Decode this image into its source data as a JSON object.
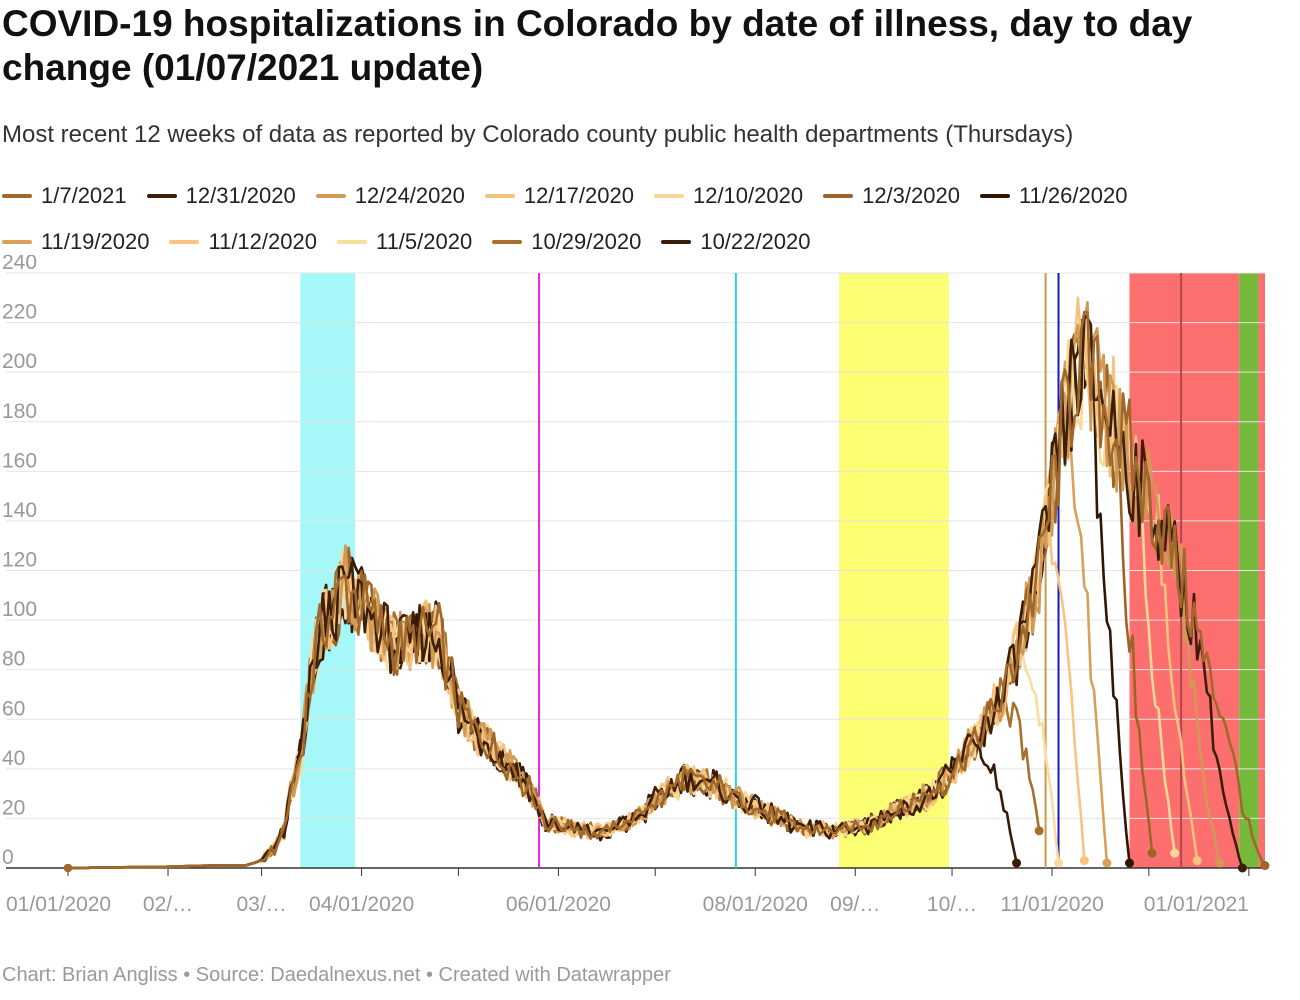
{
  "title": "COVID-19 hospitalizations in Colorado by date of illness, day to day change (01/07/2021 update)",
  "subtitle": "Most recent 12 weeks of data as reported by Colorado county public health departments (Thursdays)",
  "footer": {
    "author": "Chart: Brian Angliss",
    "source": "Source: Daedalnexus.net",
    "tool": "Created with Datawrapper",
    "separator": "•"
  },
  "chart_data": {
    "type": "line",
    "title": "COVID-19 hospitalizations in Colorado by date of illness, day to day change (01/07/2021 update)",
    "xlabel": "",
    "ylabel": "",
    "x_range": [
      "2020-01-01",
      "2021-01-06"
    ],
    "ylim": [
      0,
      240
    ],
    "grid": true,
    "legend_position": "top",
    "y_ticks": [
      "0",
      "20",
      "40",
      "60",
      "80",
      "100",
      "120",
      "140",
      "160",
      "180",
      "200",
      "220",
      "240"
    ],
    "x_ticks": [
      {
        "date": "2020-01-01",
        "label": "01/01/2020"
      },
      {
        "date": "2020-02-01",
        "label": "02/…"
      },
      {
        "date": "2020-03-01",
        "label": "03/…"
      },
      {
        "date": "2020-04-01",
        "label": "04/01/2020"
      },
      {
        "date": "2020-05-01",
        "label": ""
      },
      {
        "date": "2020-06-01",
        "label": "06/01/2020"
      },
      {
        "date": "2020-07-01",
        "label": ""
      },
      {
        "date": "2020-08-01",
        "label": "08/01/2020"
      },
      {
        "date": "2020-09-01",
        "label": "09/…"
      },
      {
        "date": "2020-10-01",
        "label": "10/…"
      },
      {
        "date": "2020-11-01",
        "label": "11/01/2020"
      },
      {
        "date": "2020-12-01",
        "label": ""
      },
      {
        "date": "2021-01-01",
        "label": "01/01/2021"
      }
    ],
    "annotations": {
      "bands": [
        {
          "start": "2020-03-13",
          "end": "2020-03-30",
          "color": "#a6f7f7"
        },
        {
          "start": "2020-08-27",
          "end": "2020-09-30",
          "color": "#fbfd72"
        },
        {
          "start": "2020-11-25",
          "end": "2020-12-29",
          "color": "#fd6f6f"
        },
        {
          "start": "2020-12-29",
          "end": "2021-01-04",
          "color": "#76b83a"
        },
        {
          "start": "2021-01-04",
          "end": "2021-01-06",
          "color": "#fd6f6f"
        }
      ],
      "lines": [
        {
          "date": "2020-05-26",
          "color": "#e325e3"
        },
        {
          "date": "2020-07-26",
          "color": "#2ad1e8"
        },
        {
          "date": "2020-10-30",
          "color": "#c89a4d"
        },
        {
          "date": "2020-11-03",
          "color": "#1a1ab8"
        },
        {
          "date": "2020-12-11",
          "color": "#b04848"
        }
      ]
    },
    "anchors": [
      [
        "2020-01-01",
        0
      ],
      [
        "2020-02-01",
        0.5
      ],
      [
        "2020-02-15",
        1
      ],
      [
        "2020-02-25",
        1
      ],
      [
        "2020-03-01",
        3
      ],
      [
        "2020-03-05",
        8
      ],
      [
        "2020-03-08",
        15
      ],
      [
        "2020-03-10",
        30
      ],
      [
        "2020-03-13",
        45
      ],
      [
        "2020-03-15",
        65
      ],
      [
        "2020-03-18",
        90
      ],
      [
        "2020-03-20",
        100
      ],
      [
        "2020-03-24",
        105
      ],
      [
        "2020-03-27",
        115
      ],
      [
        "2020-03-30",
        108
      ],
      [
        "2020-04-05",
        100
      ],
      [
        "2020-04-10",
        92
      ],
      [
        "2020-04-15",
        90
      ],
      [
        "2020-04-20",
        95
      ],
      [
        "2020-04-25",
        93
      ],
      [
        "2020-05-01",
        65
      ],
      [
        "2020-05-06",
        55
      ],
      [
        "2020-05-12",
        48
      ],
      [
        "2020-05-18",
        40
      ],
      [
        "2020-05-24",
        30
      ],
      [
        "2020-05-28",
        18
      ],
      [
        "2020-06-05",
        16
      ],
      [
        "2020-06-15",
        14
      ],
      [
        "2020-06-25",
        20
      ],
      [
        "2020-07-05",
        32
      ],
      [
        "2020-07-10",
        36
      ],
      [
        "2020-07-20",
        33
      ],
      [
        "2020-07-28",
        27
      ],
      [
        "2020-08-05",
        22
      ],
      [
        "2020-08-15",
        16
      ],
      [
        "2020-08-25",
        15
      ],
      [
        "2020-09-05",
        17
      ],
      [
        "2020-09-15",
        24
      ],
      [
        "2020-09-25",
        30
      ],
      [
        "2020-10-02",
        40
      ],
      [
        "2020-10-10",
        55
      ],
      [
        "2020-10-17",
        70
      ],
      [
        "2020-10-23",
        95
      ],
      [
        "2020-10-28",
        120
      ],
      [
        "2020-11-01",
        150
      ],
      [
        "2020-11-05",
        180
      ],
      [
        "2020-11-09",
        205
      ],
      [
        "2020-11-12",
        200
      ],
      [
        "2020-11-16",
        190
      ],
      [
        "2020-11-20",
        180
      ],
      [
        "2020-11-25",
        165
      ],
      [
        "2020-11-30",
        150
      ],
      [
        "2020-12-05",
        140
      ],
      [
        "2020-12-10",
        120
      ],
      [
        "2020-12-15",
        100
      ],
      [
        "2020-12-20",
        75
      ],
      [
        "2020-12-25",
        60
      ],
      [
        "2020-12-30",
        45
      ],
      [
        "2021-01-04",
        30
      ],
      [
        "2021-01-06",
        15
      ]
    ],
    "series": [
      {
        "name": "1/7/2021",
        "color": "#a0692b",
        "end_date": "2021-01-06",
        "end_value": 1
      },
      {
        "name": "12/31/2020",
        "color": "#3d1e08",
        "end_date": "2020-12-30",
        "end_value": 0
      },
      {
        "name": "12/24/2020",
        "color": "#d09a56",
        "end_date": "2020-12-23",
        "end_value": 2
      },
      {
        "name": "12/17/2020",
        "color": "#f7c27f",
        "end_date": "2020-12-16",
        "end_value": 3
      },
      {
        "name": "12/10/2020",
        "color": "#f9d898",
        "end_date": "2020-12-09",
        "end_value": 6
      },
      {
        "name": "12/3/2020",
        "color": "#9c6426",
        "end_date": "2020-12-02",
        "end_value": 6
      },
      {
        "name": "11/26/2020",
        "color": "#321604",
        "end_date": "2020-11-25",
        "end_value": 2
      },
      {
        "name": "11/19/2020",
        "color": "#d7a15a",
        "end_date": "2020-11-18",
        "end_value": 2
      },
      {
        "name": "11/12/2020",
        "color": "#f8c580",
        "end_date": "2020-11-11",
        "end_value": 3
      },
      {
        "name": "11/5/2020",
        "color": "#f9dd9f",
        "end_date": "2020-11-03",
        "end_value": 2
      },
      {
        "name": "10/29/2020",
        "color": "#a5712b",
        "end_date": "2020-10-28",
        "end_value": 15
      },
      {
        "name": "10/22/2020",
        "color": "#3a1b07",
        "end_date": "2020-10-21",
        "end_value": 2
      }
    ]
  }
}
